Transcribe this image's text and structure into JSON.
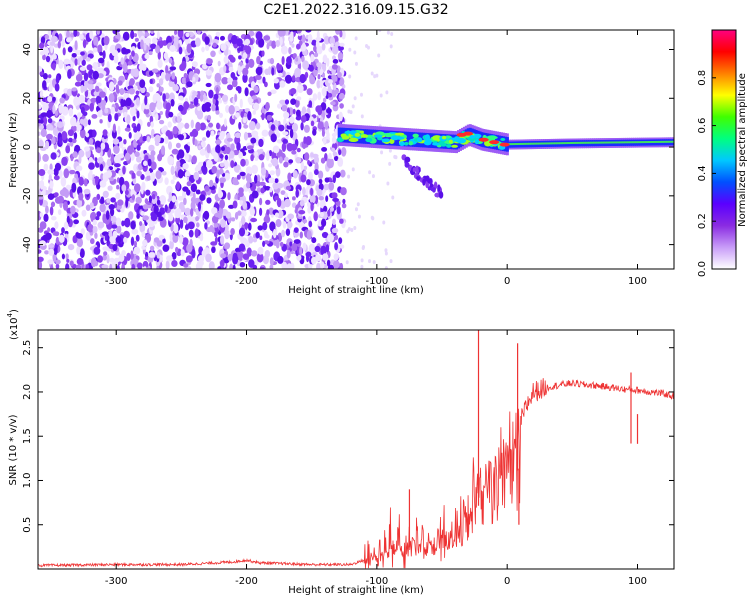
{
  "title": "C2E1.2022.316.09.15.G32",
  "chart_data": [
    {
      "type": "heatmap",
      "xlabel": "Height of straight line (km)",
      "ylabel": "Frequency (Hz)",
      "xlim": [
        -360,
        128
      ],
      "ylim": [
        -50,
        48
      ],
      "xticks": [
        -300,
        -200,
        -100,
        0,
        100
      ],
      "yticks": [
        -40,
        -20,
        0,
        20,
        40
      ],
      "colorbar": {
        "label": "Normalized spectral amplitude",
        "range": [
          0.0,
          1.0
        ],
        "ticks": [
          "0.0",
          "0.2",
          "0.4",
          "0.6",
          "0.8"
        ],
        "colors": [
          "#ffffff",
          "#c89cf8",
          "#8a2be2",
          "#5a00ff",
          "#0050ff",
          "#00c8ff",
          "#00ff80",
          "#40ff00",
          "#ffff00",
          "#ff8000",
          "#ff0000",
          "#ff0080"
        ]
      },
      "features": {
        "noise_region_x": [
          -360,
          -125
        ],
        "signal_track": [
          {
            "x": -130,
            "y": 5
          },
          {
            "x": -100,
            "y": 4
          },
          {
            "x": -70,
            "y": 3
          },
          {
            "x": -40,
            "y": 2
          },
          {
            "x": -30,
            "y": 5
          },
          {
            "x": -20,
            "y": 3
          },
          {
            "x": 0,
            "y": 1
          },
          {
            "x": 50,
            "y": 1.5
          },
          {
            "x": 128,
            "y": 2
          }
        ],
        "secondary_branch": [
          {
            "x": -80,
            "y": -5
          },
          {
            "x": -65,
            "y": -12
          },
          {
            "x": -50,
            "y": -20
          }
        ]
      }
    },
    {
      "type": "line",
      "xlabel": "Height of straight line (km)",
      "ylabel": "SNR (10 * v/v)",
      "yscale_label": "(x10",
      "yscale_exp": "4",
      "yscale_close": ")",
      "xlim": [
        -360,
        128
      ],
      "ylim": [
        0,
        2.7
      ],
      "xticks": [
        -300,
        -200,
        -100,
        0,
        100
      ],
      "yticks": [
        0.5,
        1.0,
        1.5,
        2.0,
        2.5
      ],
      "color": "#ee3333",
      "series": [
        {
          "x": [
            -360,
            -300,
            -250,
            -210,
            -200,
            -190,
            -150,
            -120,
            -110,
            -100,
            -90,
            -80,
            -70,
            -60,
            -50,
            -40,
            -35,
            -30,
            -25,
            -20,
            -15,
            -10,
            -5,
            0,
            5,
            10,
            15,
            20,
            30,
            40,
            50,
            60,
            70,
            80,
            90,
            100,
            110,
            120,
            128
          ],
          "values": [
            0.04,
            0.05,
            0.05,
            0.08,
            0.1,
            0.07,
            0.05,
            0.05,
            0.1,
            0.2,
            0.3,
            0.35,
            0.35,
            0.35,
            0.4,
            0.45,
            0.55,
            0.75,
            0.9,
            1.1,
            1.2,
            1.25,
            1.3,
            1.4,
            1.5,
            1.65,
            1.85,
            2.0,
            2.05,
            2.08,
            2.1,
            2.08,
            2.07,
            2.05,
            2.03,
            2.02,
            2.0,
            1.98,
            1.95
          ]
        }
      ],
      "spikes": [
        {
          "x": -75,
          "y": 0.9
        },
        {
          "x": -22,
          "y": 2.7
        },
        {
          "x": 8,
          "y": 2.55
        },
        {
          "x": 9,
          "y": 0.5
        },
        {
          "x": 95,
          "y": 2.22
        },
        {
          "x": 100,
          "y": 1.75
        }
      ]
    }
  ]
}
